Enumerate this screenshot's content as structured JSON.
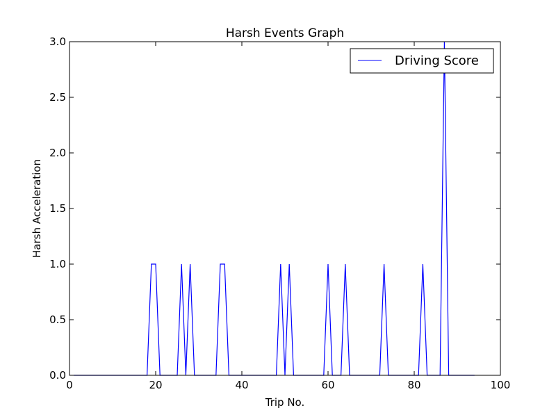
{
  "chart_data": {
    "type": "line",
    "title": "Harsh Events Graph",
    "xlabel": "Trip No.",
    "ylabel": "Harsh Acceleration",
    "xlim": [
      0,
      100
    ],
    "ylim": [
      0,
      3.0
    ],
    "x_ticks": [
      0,
      20,
      40,
      60,
      80,
      100
    ],
    "x_tick_labels": [
      "0",
      "20",
      "40",
      "60",
      "80",
      "100"
    ],
    "y_ticks": [
      0,
      0.5,
      1.0,
      1.5,
      2.0,
      2.5,
      3.0
    ],
    "y_tick_labels": [
      "0.0",
      "0.5",
      "1.0",
      "1.5",
      "2.0",
      "2.5",
      "3.0"
    ],
    "grid": false,
    "legend_position": "top-right",
    "series": [
      {
        "name": "Driving Score",
        "color": "#0000ff",
        "x": [
          1,
          2,
          3,
          4,
          5,
          6,
          7,
          8,
          9,
          10,
          11,
          12,
          13,
          14,
          15,
          16,
          17,
          18,
          19,
          20,
          21,
          22,
          23,
          24,
          25,
          26,
          27,
          28,
          29,
          30,
          31,
          32,
          33,
          34,
          35,
          36,
          37,
          38,
          39,
          40,
          41,
          42,
          43,
          44,
          45,
          46,
          47,
          48,
          49,
          50,
          51,
          52,
          53,
          54,
          55,
          56,
          57,
          58,
          59,
          60,
          61,
          62,
          63,
          64,
          65,
          66,
          67,
          68,
          69,
          70,
          71,
          72,
          73,
          74,
          75,
          76,
          77,
          78,
          79,
          80,
          81,
          82,
          83,
          84,
          85,
          86,
          87,
          88,
          89,
          90,
          91,
          92,
          93,
          94
        ],
        "y": [
          0,
          0,
          0,
          0,
          0,
          0,
          0,
          0,
          0,
          0,
          0,
          0,
          0,
          0,
          0,
          0,
          0,
          0,
          1,
          1,
          0,
          0,
          0,
          0,
          0,
          1,
          0,
          1,
          0,
          0,
          0,
          0,
          0,
          0,
          1,
          1,
          0,
          0,
          0,
          0,
          0,
          0,
          0,
          0,
          0,
          0,
          0,
          0,
          1,
          0,
          1,
          0,
          0,
          0,
          0,
          0,
          0,
          0,
          0,
          1,
          0,
          0,
          0,
          1,
          0,
          0,
          0,
          0,
          0,
          0,
          0,
          0,
          1,
          0,
          0,
          0,
          0,
          0,
          0,
          0,
          0,
          1,
          0,
          0,
          0,
          0,
          3,
          0,
          0,
          0,
          0,
          0,
          0,
          0
        ]
      }
    ]
  }
}
